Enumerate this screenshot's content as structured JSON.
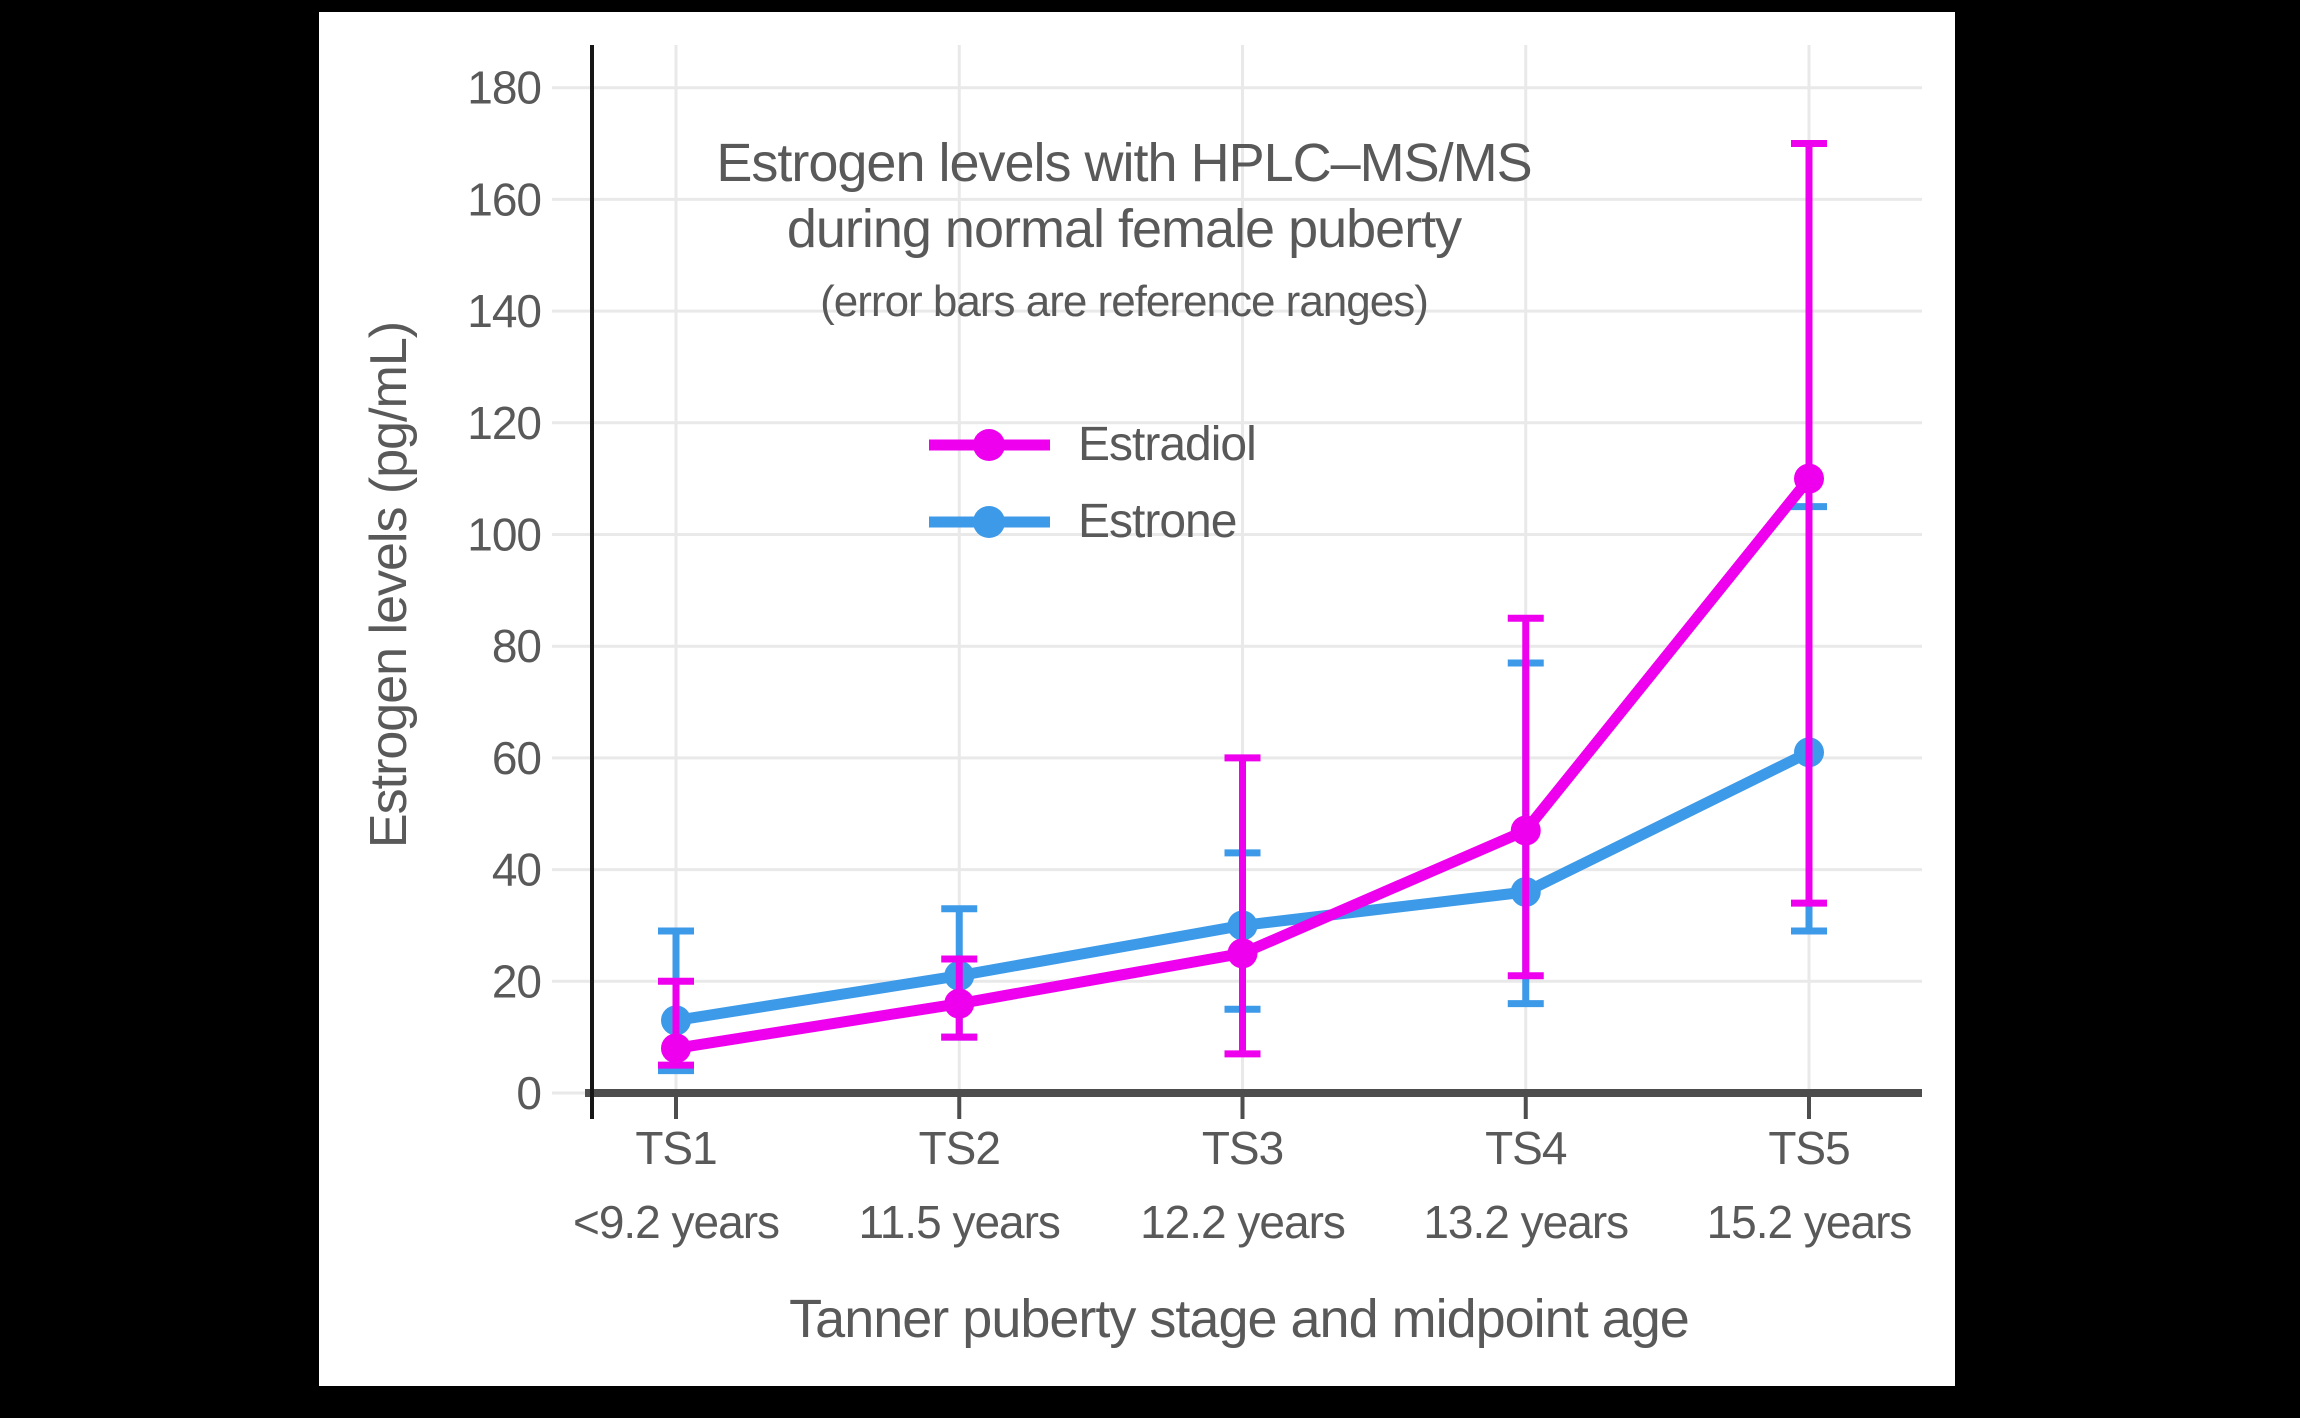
{
  "page": {
    "background_color": "#000000",
    "canvas_color": "#ffffff"
  },
  "chart_data": {
    "type": "line",
    "title_lines": [
      "Estrogen levels with HPLC–MS/MS",
      "during normal female puberty"
    ],
    "subtitle": "(error bars are reference ranges)",
    "ylabel": "Estrogen levels (pg/mL)",
    "xlabel": "Tanner puberty stage and midpoint age",
    "categories": [
      "TS1",
      "TS2",
      "TS3",
      "TS4",
      "TS5"
    ],
    "category_ages": [
      "<9.2 years",
      "11.5 years",
      "12.2 years",
      "13.2 years",
      "15.2 years"
    ],
    "y_ticks": [
      0,
      20,
      40,
      60,
      80,
      100,
      120,
      140,
      160,
      180
    ],
    "ylim": [
      0,
      188
    ],
    "grid": true,
    "error_bar_meaning": "reference ranges",
    "legend_position": "inside-upper-center",
    "series": [
      {
        "name": "Estradiol",
        "color": "#EE00EE",
        "values": [
          8,
          16,
          25,
          47,
          110
        ],
        "error_low": [
          5,
          10,
          7,
          21,
          34
        ],
        "error_high": [
          20,
          24,
          60,
          85,
          170
        ]
      },
      {
        "name": "Estrone",
        "color": "#3D9AE8",
        "values": [
          13,
          21,
          30,
          36,
          61
        ],
        "error_low": [
          4,
          10,
          15,
          16,
          29
        ],
        "error_high": [
          29,
          33,
          43,
          77,
          105
        ]
      }
    ],
    "colors": {
      "text": "#595959",
      "gridline": "#E9E9E9",
      "x_axis_line": "#4D4D4D",
      "y_axis_line": "#161616"
    }
  }
}
